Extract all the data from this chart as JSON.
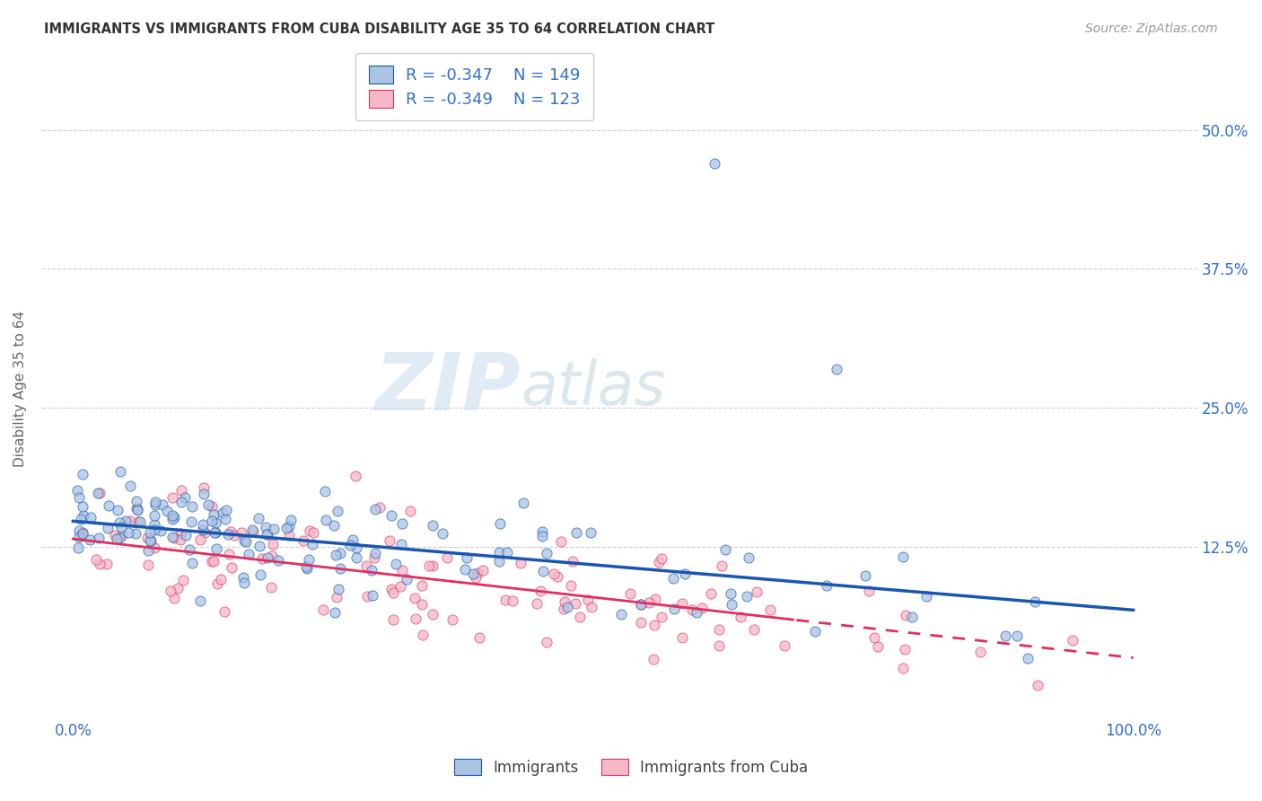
{
  "title": "IMMIGRANTS VS IMMIGRANTS FROM CUBA DISABILITY AGE 35 TO 64 CORRELATION CHART",
  "source": "Source: ZipAtlas.com",
  "ylabel_label": "Disability Age 35 to 64",
  "x_tick_labels": [
    "0.0%",
    "",
    "",
    "",
    "100.0%"
  ],
  "y_ticks": [
    0.125,
    0.25,
    0.375,
    0.5
  ],
  "y_tick_labels": [
    "12.5%",
    "25.0%",
    "37.5%",
    "50.0%"
  ],
  "xlim": [
    -0.03,
    1.06
  ],
  "ylim": [
    -0.03,
    0.565
  ],
  "legend_label1": "Immigrants",
  "legend_label2": "Immigrants from Cuba",
  "r1": "-0.347",
  "n1": "149",
  "r2": "-0.349",
  "n2": "123",
  "color1": "#aac4e2",
  "color2": "#f4b8c8",
  "line_color1": "#1a56b0",
  "line_color2": "#e03060",
  "background_color": "#ffffff",
  "grid_color": "#cccccc",
  "tick_color": "#3070c8",
  "ylabel_color": "#666666",
  "title_color": "#333333",
  "source_color": "#999999",
  "line1_x0": 0.0,
  "line1_y0": 0.148,
  "line1_x1": 1.0,
  "line1_y1": 0.068,
  "line2_x0": 0.0,
  "line2_y0": 0.132,
  "line2_x1": 1.0,
  "line2_y1": 0.025,
  "line2_dash_start": 0.68
}
